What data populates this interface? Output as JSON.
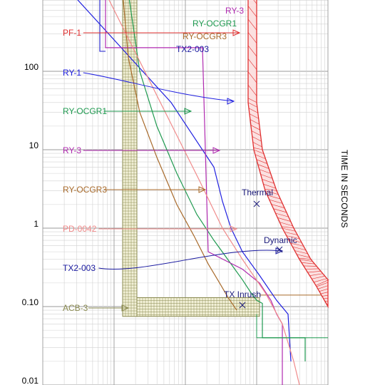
{
  "chart_data": {
    "type": "line",
    "title": "",
    "ylabel": "TIME IN SECONDS",
    "yscale": "log",
    "ylim": [
      0.01,
      1000
    ],
    "yticks": [
      {
        "label": "100",
        "value": 100
      },
      {
        "label": "10",
        "value": 10
      },
      {
        "label": "1",
        "value": 1
      },
      {
        "label": "0.10",
        "value": 0.1
      },
      {
        "label": "0.01",
        "value": 0.01
      }
    ],
    "grid": true,
    "legend": [
      {
        "label": "PF-1",
        "color": "#e03030"
      },
      {
        "label": "RY-1",
        "color": "#2020e0"
      },
      {
        "label": "RY-OCGR1",
        "color": "#1f9a50"
      },
      {
        "label": "RY-3",
        "color": "#b02ab0"
      },
      {
        "label": "RY-OCGR3",
        "color": "#a86a2a"
      },
      {
        "label": "PD-0042",
        "color": "#f08a8a"
      },
      {
        "label": "TX2-003",
        "color": "#1a1aa0"
      },
      {
        "label": "ACB-3",
        "color": "#8a8a50"
      }
    ],
    "top_labels": [
      {
        "label": "RY-1",
        "color": "#2020e0"
      },
      {
        "label": "RY-3",
        "color": "#b02ab0"
      },
      {
        "label": "RY-OCGR1",
        "color": "#1f9a50"
      },
      {
        "label": "RY-OCGR3",
        "color": "#a86a2a"
      },
      {
        "label": "TX2-003",
        "color": "#1a1aa0"
      }
    ],
    "annotations": [
      {
        "label": "Thermal",
        "t": 2.2
      },
      {
        "label": "Dynamic",
        "t": 0.5
      },
      {
        "label": "TX Inrush",
        "t": 0.1
      }
    ],
    "series": [
      {
        "name": "RY-1",
        "color": "#2020e0",
        "x": [
          0.1,
          0.45,
          0.6,
          0.63,
          0.66,
          0.7,
          0.76,
          0.82,
          0.86,
          0.87
        ],
        "y": [
          1000,
          40,
          6,
          2.2,
          1.0,
          0.5,
          0.25,
          0.12,
          0.08,
          0.02
        ]
      },
      {
        "name": "RY-OCGR1",
        "color": "#1f9a50",
        "x": [
          0.3,
          0.34,
          0.4,
          0.47,
          0.54,
          0.6,
          0.66,
          0.7,
          0.73,
          0.75,
          0.77,
          0.77,
          0.92,
          0.92
        ],
        "y": [
          1000,
          100,
          20,
          5,
          1.5,
          0.7,
          0.35,
          0.22,
          0.15,
          0.12,
          0.11,
          0.04,
          0.04,
          0.02
        ]
      },
      {
        "name": "RY-3",
        "color": "#b02ab0",
        "x": [
          0.22,
          0.22,
          0.56,
          0.58,
          0.7,
          0.76,
          0.8,
          0.82,
          0.84,
          0.84
        ],
        "y": [
          1000,
          200,
          200,
          0.5,
          0.3,
          0.2,
          0.12,
          0.08,
          0.06,
          0.01
        ]
      },
      {
        "name": "RY-OCGR3",
        "color": "#a86a2a",
        "x": [
          0.28,
          0.3,
          0.34,
          0.4,
          0.47,
          0.53,
          0.58,
          0.62,
          0.65,
          0.68
        ],
        "y": [
          1000,
          150,
          30,
          8,
          2,
          0.8,
          0.35,
          0.2,
          0.13,
          0.09
        ]
      },
      {
        "name": "PD-0042",
        "color": "#f08a8a",
        "x": [
          0.22,
          0.55,
          0.63,
          0.7,
          0.78,
          0.84,
          0.88,
          0.9
        ],
        "y": [
          1000,
          4,
          1.0,
          0.4,
          0.15,
          0.06,
          0.02,
          0.01
        ]
      },
      {
        "name": "TX2-003",
        "color": "#3030d0",
        "x": [
          0.2,
          0.2,
          0.22
        ],
        "y": [
          1000,
          180,
          180
        ]
      }
    ]
  }
}
